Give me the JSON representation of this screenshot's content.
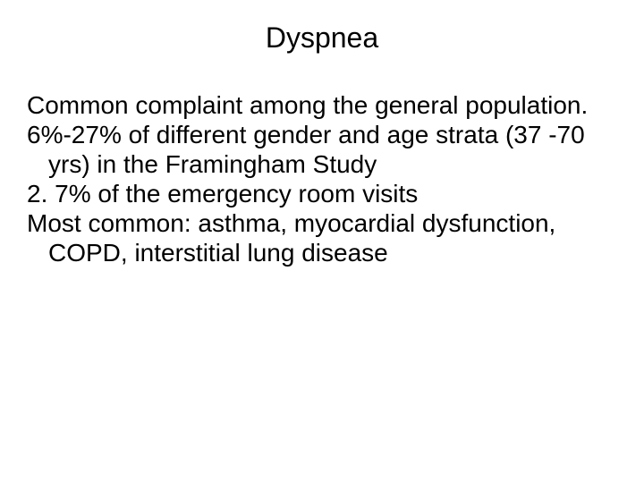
{
  "slide": {
    "title": "Dyspnea",
    "paragraphs": [
      "Common complaint among the general population.",
      "6%-27% of different gender and age strata (37 -70 yrs) in the Framingham Study",
      "2. 7% of the emergency room visits",
      "Most common: asthma,  myocardial dysfunction, COPD, interstitial lung disease"
    ],
    "title_fontsize": 32,
    "body_fontsize": 28,
    "text_color": "#000000",
    "background_color": "#ffffff",
    "font_family": "Arial"
  }
}
